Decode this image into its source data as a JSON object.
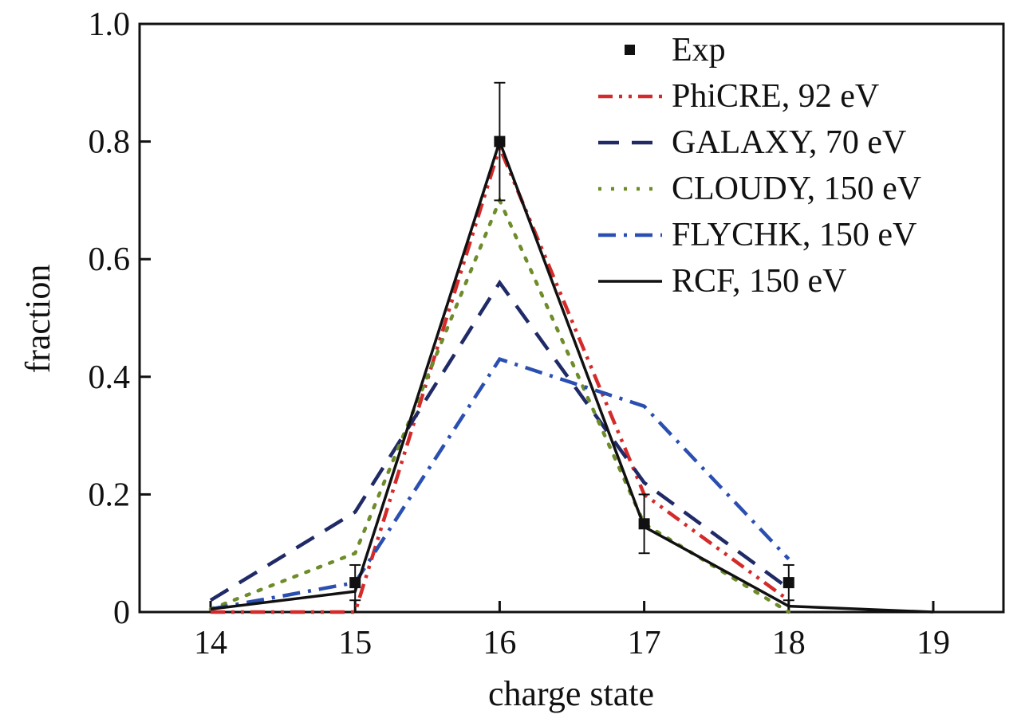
{
  "chart_data": {
    "type": "line",
    "title": "",
    "xlabel": "charge state",
    "ylabel": "fraction",
    "xlim": [
      13.5,
      19.5
    ],
    "ylim": [
      0,
      1.0
    ],
    "xticks": [
      "14",
      "15",
      "16",
      "17",
      "18",
      "19"
    ],
    "yticks": [
      "0",
      "0.2",
      "0.4",
      "0.6",
      "0.8",
      "1.0"
    ],
    "legend_position": "top-right",
    "experiment": {
      "name": "Exp",
      "x": [
        15,
        16,
        17,
        18
      ],
      "y": [
        0.05,
        0.8,
        0.15,
        0.05
      ],
      "err": [
        0.03,
        0.1,
        0.05,
        0.03
      ],
      "color": "#111111"
    },
    "series": [
      {
        "name": "PhiCRE, 92 eV",
        "style": "dash-dot-dot",
        "color": "#d42a2a",
        "x": [
          14,
          15,
          16,
          17,
          18
        ],
        "y": [
          0.0,
          0.0,
          0.79,
          0.2,
          0.02
        ]
      },
      {
        "name": "GALAXY, 70 eV",
        "style": "dash",
        "color": "#1f2a66",
        "x": [
          14,
          15,
          16,
          17,
          18
        ],
        "y": [
          0.02,
          0.17,
          0.56,
          0.22,
          0.04
        ]
      },
      {
        "name": "CLOUDY, 150 eV",
        "style": "dot",
        "color": "#6e8c2a",
        "x": [
          14,
          15,
          16,
          17,
          18
        ],
        "y": [
          0.005,
          0.1,
          0.7,
          0.15,
          0.0
        ]
      },
      {
        "name": "FLYCHK, 150 eV",
        "style": "dash-dot",
        "color": "#2a4fb0",
        "x": [
          14,
          15,
          16,
          17,
          18
        ],
        "y": [
          0.005,
          0.05,
          0.43,
          0.35,
          0.09
        ]
      },
      {
        "name": "RCF, 150 eV",
        "style": "solid",
        "color": "#111111",
        "x": [
          14,
          15,
          16,
          17,
          18,
          19
        ],
        "y": [
          0.005,
          0.035,
          0.8,
          0.145,
          0.01,
          0.0
        ]
      }
    ]
  }
}
